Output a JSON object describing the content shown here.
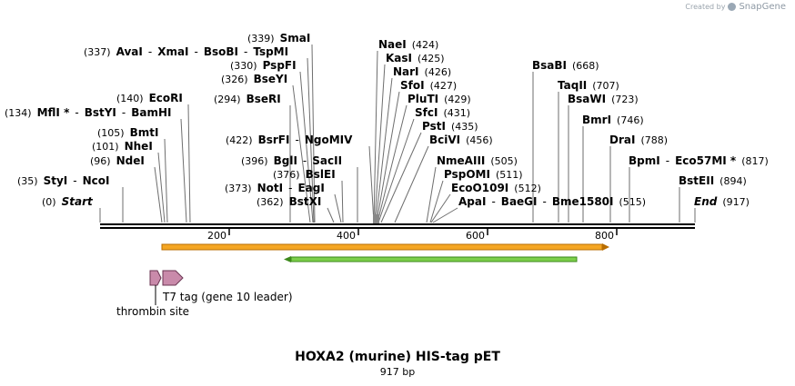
{
  "credit": {
    "prefix": "Created by",
    "brand": "SnapGene"
  },
  "title": "HOXA2 (murine) HIS-tag pET",
  "length_label": "917 bp",
  "sequence_length": 917,
  "ruler_ticks": [
    "200",
    "400",
    "600",
    "800"
  ],
  "labels": [
    {
      "id": "row-start",
      "parts": [
        {
          "pos": "(0)"
        },
        {
          "name": "Start",
          "italic": true
        }
      ]
    },
    {
      "id": "row-styi",
      "parts": [
        {
          "pos": "(35)"
        },
        {
          "name": "StyI"
        },
        {
          "sep": "-"
        },
        {
          "name": "NcoI"
        }
      ]
    },
    {
      "id": "row-ndei",
      "parts": [
        {
          "pos": "(96)"
        },
        {
          "name": "NdeI"
        }
      ]
    },
    {
      "id": "row-nhei",
      "parts": [
        {
          "pos": "(101)"
        },
        {
          "name": "NheI"
        }
      ]
    },
    {
      "id": "row-bmti",
      "parts": [
        {
          "pos": "(105)"
        },
        {
          "name": "BmtI"
        }
      ]
    },
    {
      "id": "row-mfli",
      "parts": [
        {
          "pos": "(134)"
        },
        {
          "name": "MflI *"
        },
        {
          "sep": "-"
        },
        {
          "name": "BstYI"
        },
        {
          "sep": "-"
        },
        {
          "name": "BamHI"
        }
      ]
    },
    {
      "id": "row-ecori",
      "parts": [
        {
          "pos": "(140)"
        },
        {
          "name": "EcoRI"
        }
      ]
    },
    {
      "id": "row-ava",
      "parts": [
        {
          "pos": "(337)"
        },
        {
          "name": "AvaI"
        },
        {
          "sep": "-"
        },
        {
          "name": "XmaI"
        },
        {
          "sep": "-"
        },
        {
          "name": "BsoBI"
        },
        {
          "sep": "-"
        },
        {
          "name": "TspMI"
        }
      ]
    },
    {
      "id": "row-smai",
      "parts": [
        {
          "pos": "(339)"
        },
        {
          "name": "SmaI"
        }
      ]
    },
    {
      "id": "row-pspfi",
      "parts": [
        {
          "pos": "(330)"
        },
        {
          "name": "PspFI"
        }
      ]
    },
    {
      "id": "row-bseyi",
      "parts": [
        {
          "pos": "(326)"
        },
        {
          "name": "BseYI"
        }
      ]
    },
    {
      "id": "row-bseri",
      "parts": [
        {
          "pos": "(294)"
        },
        {
          "name": "BseRI"
        }
      ]
    },
    {
      "id": "row-bsrfi",
      "parts": [
        {
          "pos": "(422)"
        },
        {
          "name": "BsrFI"
        },
        {
          "sep": "-"
        },
        {
          "name": "NgoMIV"
        }
      ]
    },
    {
      "id": "row-bgli",
      "parts": [
        {
          "pos": "(396)"
        },
        {
          "name": "BglI"
        },
        {
          "sep": "-"
        },
        {
          "name": "SacII"
        }
      ]
    },
    {
      "id": "row-bslei",
      "parts": [
        {
          "pos": "(376)"
        },
        {
          "name": "BslEI"
        }
      ]
    },
    {
      "id": "row-noti",
      "parts": [
        {
          "pos": "(373)"
        },
        {
          "name": "NotI"
        },
        {
          "sep": "-"
        },
        {
          "name": "EagI"
        }
      ]
    },
    {
      "id": "row-bstxi",
      "parts": [
        {
          "pos": "(362)"
        },
        {
          "name": "BstXI"
        }
      ]
    },
    {
      "id": "row-naei",
      "parts": [
        {
          "name": "NaeI"
        },
        {
          "pos": "(424)"
        }
      ]
    },
    {
      "id": "row-kasi",
      "parts": [
        {
          "name": "KasI"
        },
        {
          "pos": "(425)"
        }
      ]
    },
    {
      "id": "row-nari",
      "parts": [
        {
          "name": "NarI"
        },
        {
          "pos": "(426)"
        }
      ]
    },
    {
      "id": "row-sfoi",
      "parts": [
        {
          "name": "SfoI"
        },
        {
          "pos": "(427)"
        }
      ]
    },
    {
      "id": "row-pluti",
      "parts": [
        {
          "name": "PluTI"
        },
        {
          "pos": "(429)"
        }
      ]
    },
    {
      "id": "row-sfci",
      "parts": [
        {
          "name": "SfcI"
        },
        {
          "pos": "(431)"
        }
      ]
    },
    {
      "id": "row-psti",
      "parts": [
        {
          "name": "PstI"
        },
        {
          "pos": "(435)"
        }
      ]
    },
    {
      "id": "row-bcivi",
      "parts": [
        {
          "name": "BciVI"
        },
        {
          "pos": "(456)"
        }
      ]
    },
    {
      "id": "row-nmeaiii",
      "parts": [
        {
          "name": "NmeAIII"
        },
        {
          "pos": "(505)"
        }
      ]
    },
    {
      "id": "row-pspomi",
      "parts": [
        {
          "name": "PspOMI"
        },
        {
          "pos": "(511)"
        }
      ]
    },
    {
      "id": "row-ecoo109i",
      "parts": [
        {
          "name": "EcoO109I"
        },
        {
          "pos": "(512)"
        }
      ]
    },
    {
      "id": "row-apai",
      "parts": [
        {
          "name": "ApaI"
        },
        {
          "sep": "-"
        },
        {
          "name": "BaeGI"
        },
        {
          "sep": "-"
        },
        {
          "name": "Bme1580I"
        },
        {
          "pos": "(515)"
        }
      ]
    },
    {
      "id": "row-bsabi",
      "parts": [
        {
          "name": "BsaBI"
        },
        {
          "pos": "(668)"
        }
      ]
    },
    {
      "id": "row-taqii",
      "parts": [
        {
          "name": "TaqII"
        },
        {
          "pos": "(707)"
        }
      ]
    },
    {
      "id": "row-bsawi",
      "parts": [
        {
          "name": "BsaWI"
        },
        {
          "pos": "(723)"
        }
      ]
    },
    {
      "id": "row-bmri",
      "parts": [
        {
          "name": "BmrI"
        },
        {
          "pos": "(746)"
        }
      ]
    },
    {
      "id": "row-drai",
      "parts": [
        {
          "name": "DraI"
        },
        {
          "pos": "(788)"
        }
      ]
    },
    {
      "id": "row-bpmi",
      "parts": [
        {
          "name": "BpmI"
        },
        {
          "sep": "-"
        },
        {
          "name": "Eco57MI *"
        },
        {
          "pos": "(817)"
        }
      ]
    },
    {
      "id": "row-bsteii",
      "parts": [
        {
          "name": "BstEII"
        },
        {
          "pos": "(894)"
        }
      ]
    },
    {
      "id": "row-end",
      "parts": [
        {
          "name": "End",
          "italic": true
        },
        {
          "pos": "(917)"
        }
      ]
    }
  ],
  "features": [
    {
      "name": "orange-orf-arrow",
      "direction": "forward",
      "color": "#f5a623",
      "start": 96,
      "end": 917
    },
    {
      "name": "green-orf-arrow",
      "direction": "reverse",
      "color": "#5cb82e",
      "start": 290,
      "end": 746
    },
    {
      "name": "t7-tag-feature",
      "label": "T7 tag (gene 10 leader)",
      "color": "#c98aaa"
    },
    {
      "name": "thrombin-site-feature",
      "label": "thrombin site",
      "color": "#c98aaa"
    }
  ]
}
